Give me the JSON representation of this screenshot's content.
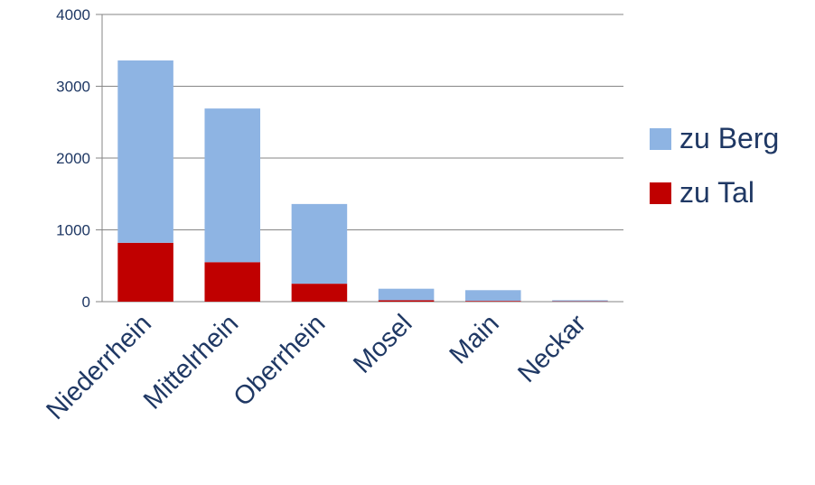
{
  "chart_data": {
    "type": "bar",
    "stacked": true,
    "categories": [
      "Niederrhein",
      "Mittelrhein",
      "Oberrhein",
      "Mosel",
      "Main",
      "Neckar"
    ],
    "series": [
      {
        "name": "zu Tal",
        "values": [
          820,
          550,
          250,
          20,
          10,
          5
        ],
        "color": "#c00000"
      },
      {
        "name": "zu Berg",
        "values": [
          2540,
          2140,
          1110,
          160,
          150,
          15
        ],
        "color": "#8eb4e3"
      }
    ],
    "yticks": [
      "0",
      "1000",
      "2000",
      "3000",
      "4000"
    ],
    "ylim": [
      0,
      4000
    ],
    "grid": true,
    "legend_position": "right",
    "legend_order": [
      "zu Berg",
      "zu Tal"
    ]
  }
}
